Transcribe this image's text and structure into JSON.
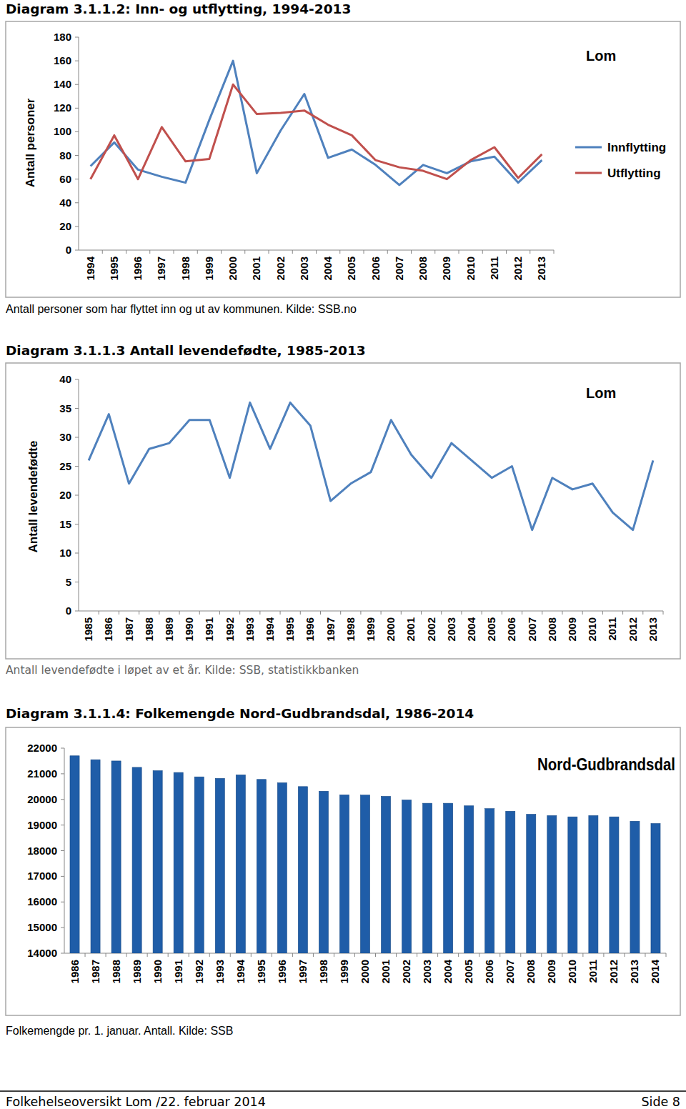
{
  "chart_data": [
    {
      "type": "line",
      "title": "Diagram 3.1.1.2: Inn- og utflytting, 1994-2013",
      "annotations": [
        "Lom"
      ],
      "y_label": "Antall personer",
      "caption": "Antall personer som har flyttet inn og ut av kommunen. Kilde: SSB.no",
      "categories": [
        "1994",
        "1995",
        "1996",
        "1997",
        "1998",
        "1999",
        "2000",
        "2001",
        "2002",
        "2003",
        "2004",
        "2005",
        "2006",
        "2007",
        "2008",
        "2009",
        "2010",
        "2011",
        "2012",
        "2013"
      ],
      "series": [
        {
          "name": "Innflytting",
          "color": "#4F81BD",
          "values": [
            71,
            91,
            68,
            62,
            57,
            110,
            160,
            65,
            101,
            132,
            78,
            85,
            72,
            55,
            72,
            65,
            75,
            79,
            57,
            76
          ]
        },
        {
          "name": "Utflytting",
          "color": "#C0504D",
          "values": [
            60,
            97,
            60,
            104,
            75,
            77,
            140,
            115,
            116,
            118,
            106,
            97,
            76,
            70,
            67,
            60,
            76,
            87,
            61,
            81
          ]
        }
      ],
      "ylim": [
        0,
        180
      ],
      "yticks": [
        0,
        20,
        40,
        60,
        80,
        100,
        120,
        140,
        160,
        180
      ],
      "grid": false,
      "legend": "right"
    },
    {
      "type": "line",
      "title": "Diagram 3.1.1.3 Antall levendefødte, 1985-2013",
      "annotations": [
        "Lom"
      ],
      "y_label": "Antall levendefødte",
      "caption": "Antall levendefødte i løpet av et år. Kilde: SSB, statistikkbanken",
      "categories": [
        "1985",
        "1986",
        "1987",
        "1988",
        "1989",
        "1990",
        "1991",
        "1992",
        "1993",
        "1994",
        "1995",
        "1996",
        "1997",
        "1998",
        "1999",
        "2000",
        "2001",
        "2002",
        "2003",
        "2004",
        "2005",
        "2006",
        "2007",
        "2008",
        "2009",
        "2010",
        "2011",
        "2012",
        "2013"
      ],
      "values": [
        26,
        34,
        22,
        28,
        29,
        33,
        33,
        23,
        36,
        28,
        36,
        32,
        19,
        22,
        24,
        33,
        27,
        23,
        29,
        26,
        23,
        25,
        14,
        23,
        21,
        22,
        17,
        14,
        26
      ],
      "color": "#4F81BD",
      "ylim": [
        0,
        40
      ],
      "yticks": [
        0,
        5,
        10,
        15,
        20,
        25,
        30,
        35,
        40
      ],
      "grid": false
    },
    {
      "type": "bar",
      "title": "Diagram 3.1.1.4: Folkemengde Nord-Gudbrandsdal, 1986-2014",
      "annotations": [
        "Nord-Gudbrandsdal"
      ],
      "caption": "Folkemengde pr. 1. januar. Antall. Kilde: SSB",
      "categories": [
        "1986",
        "1987",
        "1988",
        "1989",
        "1990",
        "1991",
        "1992",
        "1993",
        "1994",
        "1995",
        "1996",
        "1997",
        "1998",
        "1999",
        "2000",
        "2001",
        "2002",
        "2003",
        "2004",
        "2005",
        "2006",
        "2007",
        "2008",
        "2009",
        "2010",
        "2011",
        "2012",
        "2013",
        "2014"
      ],
      "values": [
        21700,
        21550,
        21500,
        21250,
        21120,
        21050,
        20880,
        20820,
        20960,
        20780,
        20650,
        20500,
        20320,
        20180,
        20170,
        20120,
        19980,
        19850,
        19850,
        19750,
        19640,
        19540,
        19420,
        19370,
        19320,
        19370,
        19320,
        19150,
        19060
      ],
      "color": "#1F5DA8",
      "ylim": [
        14000,
        22000
      ],
      "yticks": [
        14000,
        15000,
        16000,
        17000,
        18000,
        19000,
        20000,
        21000,
        22000
      ],
      "grid": false
    }
  ],
  "footer": {
    "left": "Folkehelseoversikt Lom /22. februar 2014",
    "right": "Side 8"
  }
}
